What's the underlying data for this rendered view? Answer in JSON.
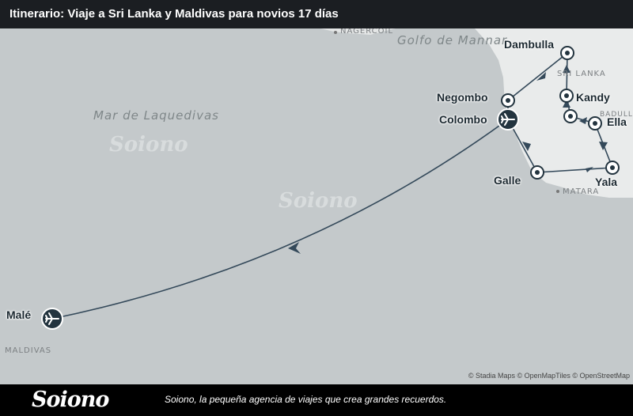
{
  "header": {
    "title": "Itinerario: Viaje a Sri Lanka y Maldivas para novios 17 días"
  },
  "map": {
    "sea_labels": {
      "laccadive": "Mar de Laquedivas",
      "mannar": "Golfo de Mannar"
    },
    "country_labels": {
      "sri_lanka": "SRI LANKA",
      "maldives": "MALDIVAS"
    },
    "town_labels": {
      "nagercoil": "NAGERCOIL",
      "matara": "MATARA",
      "badulla": "BADULLA"
    },
    "watermark": "Soiono",
    "stops": {
      "negombo": "Negombo",
      "colombo": "Colombo",
      "dambulla": "Dambulla",
      "kandy": "Kandy",
      "ella": "Ella",
      "yala": "Yala",
      "galle": "Galle",
      "male": "Malé"
    },
    "attribution": "© Stadia Maps © OpenMapTiles © OpenStreetMap",
    "colors": {
      "route": "#34495a",
      "marker_fill": "#ffffff",
      "airport_fill": "#23343f",
      "land": "#e9ebeb",
      "sea": "#c4c9cb"
    }
  },
  "footer": {
    "brand": "Soiono",
    "tagline": "Soiono, la pequeña agencia de viajes que crea grandes recuerdos."
  }
}
